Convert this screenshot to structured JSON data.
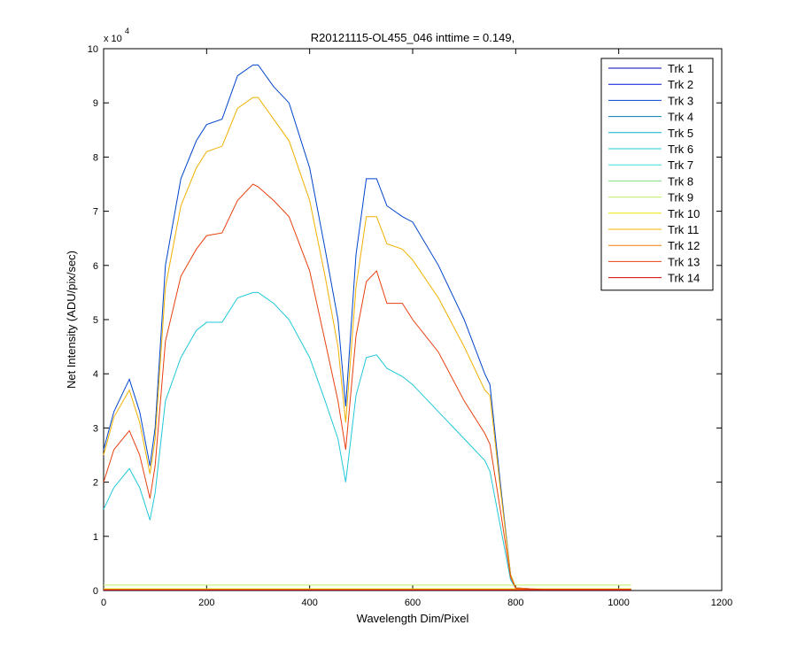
{
  "chart_data": {
    "type": "line",
    "title": "R20121115-OL455_046 inttime = 0.149,",
    "xlabel": "Wavelength Dim/Pixel",
    "ylabel": "Net Intensity (ADU/pix/sec)",
    "y_scale_label": "x 10",
    "y_scale_exponent": "4",
    "legend": "northeast",
    "xlim": [
      0,
      1200
    ],
    "xticks": [
      0,
      200,
      400,
      600,
      800,
      1000,
      1200
    ],
    "ylim": [
      0,
      10
    ],
    "yticks": [
      0,
      1,
      2,
      3,
      4,
      5,
      6,
      7,
      8,
      9,
      10
    ],
    "x": [
      0,
      20,
      50,
      70,
      90,
      100,
      120,
      150,
      180,
      200,
      230,
      260,
      290,
      300,
      330,
      360,
      400,
      430,
      455,
      470,
      490,
      510,
      530,
      550,
      580,
      600,
      650,
      700,
      740,
      750,
      770,
      790,
      800,
      850,
      900,
      1000,
      1024
    ],
    "series": [
      {
        "name": "Trk 1",
        "color": "#0000b8",
        "values": [
          0.02,
          0.02,
          0.02,
          0.02,
          0.02,
          0.02,
          0.02,
          0.02,
          0.02,
          0.02,
          0.02,
          0.02,
          0.02,
          0.02,
          0.02,
          0.02,
          0.02,
          0.02,
          0.02,
          0.02,
          0.02,
          0.02,
          0.02,
          0.02,
          0.02,
          0.02,
          0.02,
          0.02,
          0.02,
          0.02,
          0.02,
          0.02,
          0.02,
          0.02,
          0.02,
          0.02,
          0.02
        ]
      },
      {
        "name": "Trk 2",
        "color": "#0010d8",
        "values": [
          0.01,
          0.01,
          0.01,
          0.01,
          0.01,
          0.01,
          0.01,
          0.01,
          0.01,
          0.01,
          0.01,
          0.01,
          0.01,
          0.01,
          0.01,
          0.01,
          0.01,
          0.01,
          0.01,
          0.01,
          0.01,
          0.01,
          0.01,
          0.01,
          0.01,
          0.01,
          0.01,
          0.01,
          0.01,
          0.01,
          0.01,
          0.01,
          0.01,
          0.01,
          0.01,
          0.01,
          0.01
        ]
      },
      {
        "name": "Trk 3",
        "color": "#0044cc",
        "values": [
          2.6,
          3.3,
          3.9,
          3.3,
          2.3,
          3.0,
          6.0,
          7.6,
          8.3,
          8.6,
          8.7,
          9.5,
          9.7,
          9.7,
          9.3,
          9.0,
          7.8,
          6.3,
          5.0,
          3.4,
          6.2,
          7.6,
          7.6,
          7.1,
          6.9,
          6.8,
          6.0,
          5.0,
          4.0,
          3.8,
          2.0,
          0.3,
          0.05,
          0.02,
          0.02,
          0.02,
          0.02
        ]
      },
      {
        "name": "Trk 4",
        "color": "#0080b0",
        "values": [
          0.02,
          0.02,
          0.02,
          0.02,
          0.02,
          0.02,
          0.02,
          0.02,
          0.02,
          0.02,
          0.02,
          0.02,
          0.02,
          0.02,
          0.02,
          0.02,
          0.02,
          0.02,
          0.02,
          0.02,
          0.02,
          0.02,
          0.02,
          0.02,
          0.02,
          0.02,
          0.02,
          0.02,
          0.02,
          0.02,
          0.02,
          0.02,
          0.02,
          0.02,
          0.02,
          0.02,
          0.02
        ]
      },
      {
        "name": "Trk 5",
        "color": "#00b0c8",
        "values": [
          0.01,
          0.01,
          0.01,
          0.01,
          0.01,
          0.01,
          0.01,
          0.01,
          0.01,
          0.01,
          0.01,
          0.01,
          0.01,
          0.01,
          0.01,
          0.01,
          0.01,
          0.01,
          0.01,
          0.01,
          0.01,
          0.01,
          0.01,
          0.01,
          0.01,
          0.01,
          0.01,
          0.01,
          0.01,
          0.01,
          0.01,
          0.01,
          0.01,
          0.01,
          0.01,
          0.01,
          0.01
        ]
      },
      {
        "name": "Trk 6",
        "color": "#20c8d8",
        "values": [
          1.5,
          1.9,
          2.25,
          1.9,
          1.3,
          1.8,
          3.5,
          4.3,
          4.8,
          4.95,
          4.95,
          5.4,
          5.5,
          5.5,
          5.3,
          5.0,
          4.3,
          3.5,
          2.8,
          2.0,
          3.6,
          4.3,
          4.35,
          4.1,
          3.95,
          3.8,
          3.3,
          2.8,
          2.4,
          2.2,
          1.2,
          0.2,
          0.04,
          0.02,
          0.02,
          0.02,
          0.02
        ]
      },
      {
        "name": "Trk 7",
        "color": "#40e0e0",
        "values": [
          0.02,
          0.02,
          0.02,
          0.02,
          0.02,
          0.02,
          0.02,
          0.02,
          0.02,
          0.02,
          0.02,
          0.02,
          0.02,
          0.02,
          0.02,
          0.02,
          0.02,
          0.02,
          0.02,
          0.02,
          0.02,
          0.02,
          0.02,
          0.02,
          0.02,
          0.02,
          0.02,
          0.02,
          0.02,
          0.02,
          0.02,
          0.02,
          0.02,
          0.02,
          0.02,
          0.02,
          0.02
        ]
      },
      {
        "name": "Trk 8",
        "color": "#80e080",
        "values": [
          0.03,
          0.03,
          0.03,
          0.03,
          0.03,
          0.03,
          0.03,
          0.03,
          0.03,
          0.03,
          0.03,
          0.03,
          0.03,
          0.03,
          0.03,
          0.03,
          0.03,
          0.03,
          0.03,
          0.03,
          0.03,
          0.03,
          0.03,
          0.03,
          0.03,
          0.03,
          0.03,
          0.03,
          0.03,
          0.03,
          0.03,
          0.03,
          0.03,
          0.03,
          0.03,
          0.03,
          0.03
        ]
      },
      {
        "name": "Trk 9",
        "color": "#c0f060",
        "values": [
          0.1,
          0.1,
          0.1,
          0.1,
          0.1,
          0.1,
          0.1,
          0.1,
          0.1,
          0.1,
          0.1,
          0.1,
          0.1,
          0.1,
          0.1,
          0.1,
          0.1,
          0.1,
          0.1,
          0.1,
          0.1,
          0.1,
          0.1,
          0.1,
          0.1,
          0.1,
          0.1,
          0.1,
          0.1,
          0.1,
          0.1,
          0.1,
          0.1,
          0.1,
          0.1,
          0.1,
          0.1
        ]
      },
      {
        "name": "Trk 10",
        "color": "#e8e800",
        "values": [
          0.03,
          0.03,
          0.03,
          0.03,
          0.03,
          0.03,
          0.03,
          0.03,
          0.03,
          0.03,
          0.03,
          0.03,
          0.03,
          0.03,
          0.03,
          0.03,
          0.03,
          0.03,
          0.03,
          0.03,
          0.03,
          0.03,
          0.03,
          0.03,
          0.03,
          0.03,
          0.03,
          0.03,
          0.03,
          0.03,
          0.03,
          0.03,
          0.03,
          0.03,
          0.03,
          0.03,
          0.03
        ]
      },
      {
        "name": "Trk 11",
        "color": "#f0b000",
        "values": [
          2.5,
          3.2,
          3.7,
          3.1,
          2.15,
          2.8,
          5.6,
          7.1,
          7.8,
          8.1,
          8.2,
          8.9,
          9.1,
          9.1,
          8.7,
          8.3,
          7.2,
          5.8,
          4.5,
          3.1,
          5.6,
          6.9,
          6.9,
          6.4,
          6.3,
          6.1,
          5.4,
          4.5,
          3.7,
          3.6,
          1.9,
          0.3,
          0.05,
          0.02,
          0.02,
          0.02,
          0.02
        ]
      },
      {
        "name": "Trk 12",
        "color": "#f08000",
        "values": [
          0.02,
          0.02,
          0.02,
          0.02,
          0.02,
          0.02,
          0.02,
          0.02,
          0.02,
          0.02,
          0.02,
          0.02,
          0.02,
          0.02,
          0.02,
          0.02,
          0.02,
          0.02,
          0.02,
          0.02,
          0.02,
          0.02,
          0.02,
          0.02,
          0.02,
          0.02,
          0.02,
          0.02,
          0.02,
          0.02,
          0.02,
          0.02,
          0.02,
          0.02,
          0.02,
          0.02,
          0.02
        ]
      },
      {
        "name": "Trk 13",
        "color": "#e84010",
        "values": [
          2.0,
          2.6,
          2.95,
          2.5,
          1.7,
          2.3,
          4.6,
          5.8,
          6.3,
          6.55,
          6.6,
          7.2,
          7.5,
          7.45,
          7.2,
          6.9,
          5.9,
          4.6,
          3.5,
          2.6,
          4.7,
          5.7,
          5.9,
          5.3,
          5.3,
          5.0,
          4.4,
          3.5,
          2.9,
          2.7,
          1.5,
          0.25,
          0.04,
          0.02,
          0.02,
          0.02,
          0.02
        ]
      },
      {
        "name": "Trk 14",
        "color": "#d00000",
        "values": [
          0.01,
          0.01,
          0.01,
          0.01,
          0.01,
          0.01,
          0.01,
          0.01,
          0.01,
          0.01,
          0.01,
          0.01,
          0.01,
          0.01,
          0.01,
          0.01,
          0.01,
          0.01,
          0.01,
          0.01,
          0.01,
          0.01,
          0.01,
          0.01,
          0.01,
          0.01,
          0.01,
          0.01,
          0.01,
          0.01,
          0.01,
          0.01,
          0.01,
          0.01,
          0.01,
          0.01,
          0.01
        ]
      }
    ]
  }
}
